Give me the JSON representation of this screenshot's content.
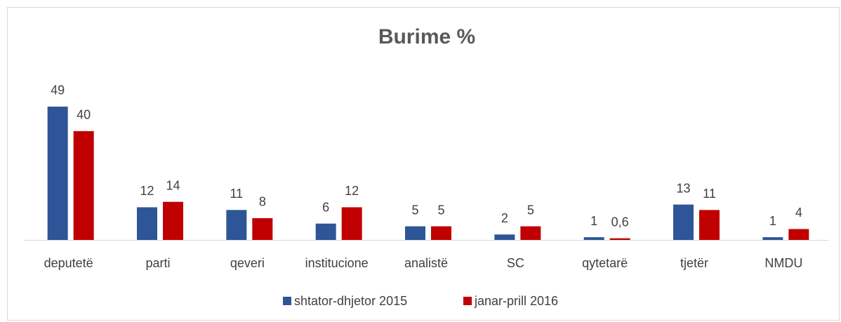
{
  "chart_data": {
    "type": "bar",
    "title": "Burime %",
    "categories": [
      "deputetë",
      "parti",
      "qeveri",
      "institucione",
      "analistë",
      "SC",
      "qytetarë",
      "tjetër",
      "NMDU"
    ],
    "series": [
      {
        "name": "shtator-dhjetor 2015",
        "color": "#2e5597",
        "values": [
          49,
          12,
          11,
          6,
          5,
          2,
          1,
          13,
          1
        ]
      },
      {
        "name": "janar-prill 2016",
        "color": "#c00000",
        "values": [
          40,
          14,
          8,
          12,
          5,
          5,
          0.6,
          11,
          4
        ],
        "value_labels": [
          "40",
          "14",
          "8",
          "12",
          "5",
          "5",
          "0,6",
          "11",
          "4"
        ]
      }
    ],
    "ylim": [
      0,
      55
    ],
    "legend": "bottom"
  }
}
